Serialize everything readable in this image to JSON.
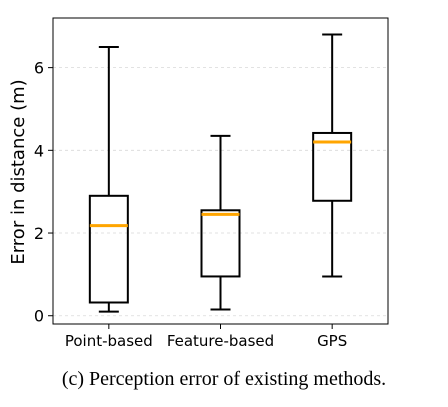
{
  "caption": "(c)  Perception error of existing methods.",
  "chart_data": {
    "type": "box",
    "ylabel": "Error in distance (m)",
    "ylim": [
      -0.2,
      7.2
    ],
    "yticks": [
      0,
      2,
      4,
      6
    ],
    "grid": "horizontal-dashed",
    "categories": [
      "Point-based",
      "Feature-based",
      "GPS"
    ],
    "boxes": [
      {
        "name": "Point-based",
        "whisker_low": 0.1,
        "q1": 0.32,
        "median": 2.18,
        "q3": 2.9,
        "whisker_high": 6.5
      },
      {
        "name": "Feature-based",
        "whisker_low": 0.15,
        "q1": 0.95,
        "median": 2.45,
        "q3": 2.55,
        "whisker_high": 4.35
      },
      {
        "name": "GPS",
        "whisker_low": 0.95,
        "q1": 2.78,
        "median": 4.2,
        "q3": 4.42,
        "whisker_high": 6.8
      }
    ],
    "colors": {
      "median": "#FFA500",
      "box": "#000000",
      "grid": "#d9d9d9"
    }
  }
}
